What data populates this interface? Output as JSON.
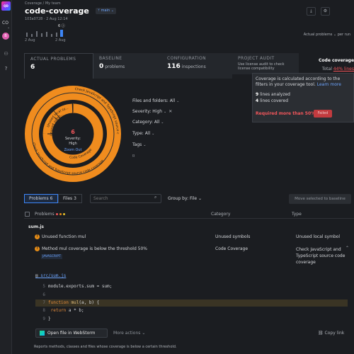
{
  "rail": {
    "logo": "QD",
    "team_short": "CO",
    "avatar": "B"
  },
  "header": {
    "breadcrumb": "Coverage / My team",
    "project": "code-coverage",
    "branch": "main",
    "commit": "103a0728 · 2 Aug 12:14",
    "timeline_selected_value": "6",
    "timeline_date_left": "2 Aug",
    "timeline_date_mid": "2 Aug",
    "timeline_metric": "Actual problems",
    "timeline_per": "per run"
  },
  "tabs": [
    {
      "title": "ACTUAL PROBLEMS",
      "value": "6",
      "suffix": ""
    },
    {
      "title": "BASELINE",
      "value": "0",
      "suffix": "problems"
    },
    {
      "title": "CONFIGURATION",
      "value": "116",
      "suffix": "inspections"
    },
    {
      "title": "PROJECT AUDIT",
      "desc": "Use license audit to check license compatibility"
    }
  ],
  "coverage": {
    "title": "Code coverage",
    "total_label": "Total",
    "total_value": "44% lines",
    "popup_text": "Coverage is calculated according to the filters in your coverage tool.",
    "popup_link": "Learn more",
    "lines_analyzed_n": "9",
    "lines_analyzed_label": "lines analyzed",
    "lines_covered_n": "4",
    "lines_covered_label": "lines covered",
    "required": "Required more than 50%",
    "status": "Failed"
  },
  "donut": {
    "center_value": "6",
    "center_label1": "Severity:",
    "center_label2": "High",
    "zoom_out": "Zoom Out",
    "inner_labels": [
      "Unused local sy...",
      "Unused symb..."
    ],
    "inner_right": "Code Coverage",
    "outer_left": "",
    "outer_right": "Check JavaScript and TypeScript source code coverage",
    "outer_bottom": "Check JavaScript and TypeScript source code coverage",
    "color": "#f08c1e"
  },
  "filters": {
    "files": "Files and folders: All",
    "severity": "Severity: High",
    "category": "Category: All",
    "type": "Type: All",
    "tags": "Tags"
  },
  "list": {
    "tab_problems": "Problems 6",
    "tab_files": "Files 3",
    "search_placeholder": "Search",
    "group_by": "Group by: File",
    "move_button": "Move selected to baseline",
    "col_problems": "Problems",
    "col_category": "Category",
    "col_type": "Type",
    "file_group": "sum.js",
    "rows": [
      {
        "name": "Unused function mul",
        "category": "Unused symbols",
        "type": "Unused local symbol"
      },
      {
        "name": "Method mul coverage is below the threshold 50%",
        "category": "Code Coverage",
        "type": "Check JavaScript and TypeScript source code coverage",
        "badge": "JAVASCRIPT"
      }
    ]
  },
  "code": {
    "file": "src/sum.js",
    "lines": [
      {
        "n": "5",
        "text": "module.exports.sum = sum;"
      },
      {
        "n": "6",
        "text": ""
      },
      {
        "n": "7",
        "text": "function mul(a, b) {"
      },
      {
        "n": "8",
        "text": "  return a * b;"
      },
      {
        "n": "9",
        "text": "}"
      }
    ],
    "open_button": "Open file in WebStorm",
    "more_actions": "More actions",
    "copy_link": "Copy link",
    "footer": "Reports methods, classes and files whose coverage is below a certain threshold."
  }
}
